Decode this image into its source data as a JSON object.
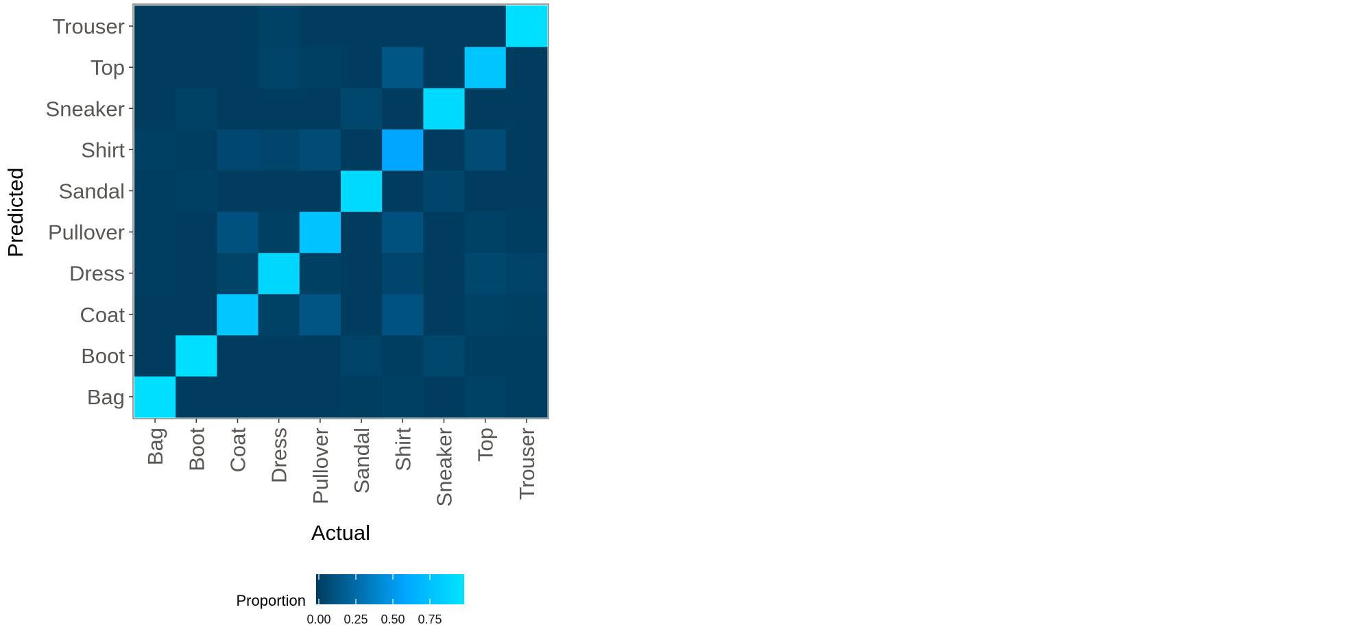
{
  "chart_data": {
    "type": "heatmap",
    "title": "",
    "xlabel": "Actual",
    "ylabel": "Predicted",
    "x_categories": [
      "Bag",
      "Boot",
      "Coat",
      "Dress",
      "Pullover",
      "Sandal",
      "Shirt",
      "Sneaker",
      "Top",
      "Trouser"
    ],
    "y_categories": [
      "Bag",
      "Boot",
      "Coat",
      "Dress",
      "Pullover",
      "Sandal",
      "Shirt",
      "Sneaker",
      "Top",
      "Trouser"
    ],
    "value_note": "values[row][col]; row = predicted class, col = actual class; proportion of each actual class",
    "values": [
      [
        0.96,
        0.0,
        0.0,
        0.0,
        0.0,
        0.01,
        0.02,
        0.0,
        0.03,
        0.01
      ],
      [
        0.0,
        0.96,
        0.0,
        0.0,
        0.0,
        0.04,
        0.01,
        0.06,
        0.01,
        0.01
      ],
      [
        0.0,
        0.0,
        0.81,
        0.03,
        0.14,
        0.0,
        0.13,
        0.0,
        0.03,
        0.02
      ],
      [
        0.01,
        0.0,
        0.04,
        0.91,
        0.02,
        0.0,
        0.05,
        0.0,
        0.06,
        0.04
      ],
      [
        0.01,
        0.0,
        0.12,
        0.02,
        0.79,
        0.0,
        0.12,
        0.0,
        0.03,
        0.01
      ],
      [
        0.01,
        0.02,
        0.0,
        0.0,
        0.0,
        0.93,
        0.0,
        0.05,
        0.0,
        0.0
      ],
      [
        0.02,
        0.01,
        0.07,
        0.05,
        0.09,
        0.0,
        0.6,
        0.0,
        0.09,
        0.0
      ],
      [
        0.0,
        0.03,
        0.0,
        0.0,
        0.0,
        0.06,
        0.0,
        0.93,
        0.0,
        0.0
      ],
      [
        0.0,
        0.0,
        0.0,
        0.04,
        0.02,
        0.0,
        0.15,
        0.0,
        0.8,
        0.0
      ],
      [
        0.0,
        0.0,
        0.0,
        0.03,
        0.0,
        0.0,
        0.0,
        0.0,
        0.0,
        0.96
      ]
    ],
    "legend": {
      "title": "Proportion",
      "ticks": [
        0.0,
        0.25,
        0.5,
        0.75
      ],
      "tick_labels": [
        "0.00",
        "0.25",
        "0.50",
        "0.75"
      ],
      "placement": "bottom",
      "range": [
        0,
        1
      ]
    },
    "colors": {
      "low": "#003c5e",
      "mid": "#00a6ff",
      "high": "#00e5ff",
      "panel_border": "#7f7f7f",
      "tick_text": "#5a5652",
      "axis_title": "#000000"
    },
    "grid": false
  }
}
